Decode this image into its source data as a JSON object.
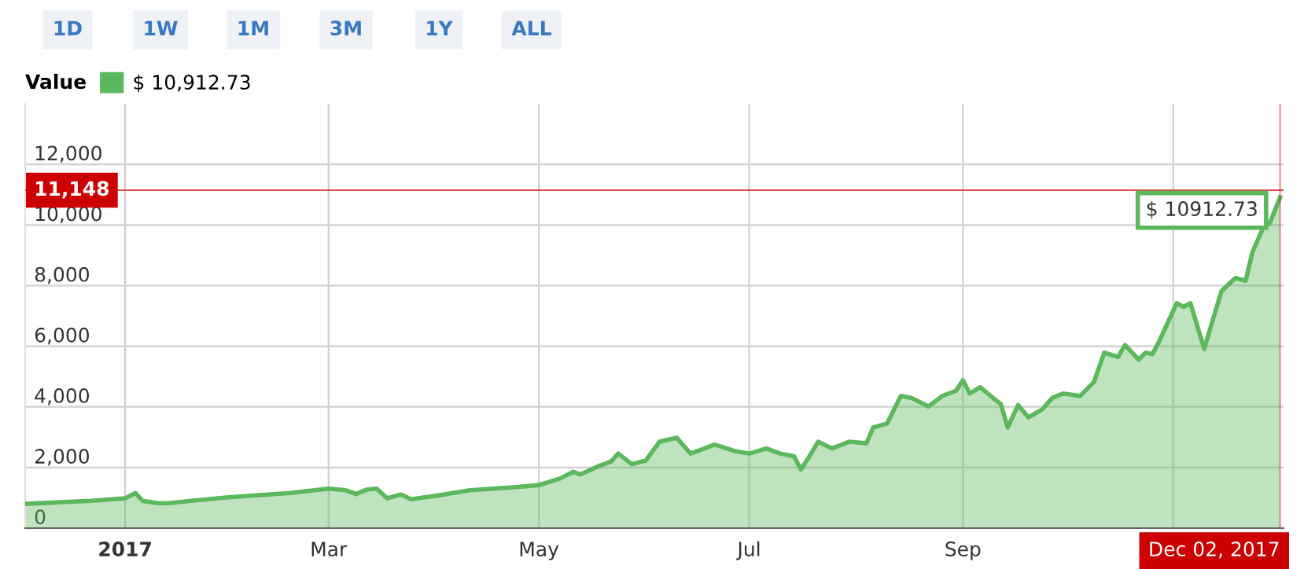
{
  "chart_data": {
    "type": "area",
    "legend_title": "Value",
    "x": [
      "2016-12-03",
      "2016-12-22",
      "2017-01-01",
      "2017-01-04",
      "2017-01-06",
      "2017-01-11",
      "2017-01-14",
      "2017-01-31",
      "2017-02-18",
      "2017-03-01",
      "2017-03-06",
      "2017-03-09",
      "2017-03-12",
      "2017-03-15",
      "2017-03-18",
      "2017-03-22",
      "2017-03-25",
      "2017-04-02",
      "2017-04-11",
      "2017-04-23",
      "2017-05-01",
      "2017-05-07",
      "2017-05-11",
      "2017-05-13",
      "2017-05-18",
      "2017-05-22",
      "2017-05-24",
      "2017-05-28",
      "2017-06-01",
      "2017-06-03",
      "2017-06-05",
      "2017-06-10",
      "2017-06-14",
      "2017-06-18",
      "2017-06-21",
      "2017-06-27",
      "2017-07-01",
      "2017-07-06",
      "2017-07-10",
      "2017-07-14",
      "2017-07-16",
      "2017-07-18",
      "2017-07-21",
      "2017-07-25",
      "2017-07-30",
      "2017-08-04",
      "2017-08-06",
      "2017-08-10",
      "2017-08-14",
      "2017-08-17",
      "2017-08-22",
      "2017-08-26",
      "2017-08-30",
      "2017-09-01",
      "2017-09-03",
      "2017-09-06",
      "2017-09-10",
      "2017-09-12",
      "2017-09-14",
      "2017-09-17",
      "2017-09-20",
      "2017-09-24",
      "2017-09-27",
      "2017-09-30",
      "2017-10-05",
      "2017-10-09",
      "2017-10-12",
      "2017-10-16",
      "2017-10-18",
      "2017-10-22",
      "2017-10-24",
      "2017-10-26",
      "2017-10-28",
      "2017-11-02",
      "2017-11-04",
      "2017-11-06",
      "2017-11-10",
      "2017-11-12",
      "2017-11-15",
      "2017-11-19",
      "2017-11-22",
      "2017-11-24",
      "2017-11-27",
      "2017-11-29",
      "2017-12-02"
    ],
    "series": [
      {
        "name": "$ 10,912.73",
        "color": "#5cb85c",
        "values": [
          800,
          900,
          985,
          1160,
          900,
          815,
          830,
          1020,
          1160,
          1300,
          1250,
          1125,
          1270,
          1300,
          985,
          1110,
          950,
          1080,
          1250,
          1340,
          1420,
          1630,
          1860,
          1770,
          2030,
          2200,
          2460,
          2110,
          2230,
          2540,
          2850,
          2980,
          2460,
          2630,
          2760,
          2540,
          2460,
          2630,
          2460,
          2370,
          1940,
          2280,
          2850,
          2630,
          2850,
          2800,
          3320,
          3450,
          4360,
          4300,
          4010,
          4360,
          4530,
          4880,
          4440,
          4650,
          4270,
          4090,
          3320,
          4060,
          3650,
          3920,
          4300,
          4440,
          4360,
          4820,
          5790,
          5650,
          6040,
          5560,
          5790,
          5740,
          6180,
          7420,
          7300,
          7420,
          5910,
          6690,
          7820,
          8250,
          8160,
          9110,
          9890,
          10060,
          10912.73
        ]
      }
    ],
    "xlim": [
      "2016-12-03",
      "2017-12-03"
    ],
    "xticks": [
      {
        "value": "2017-01-01",
        "label": "2017"
      },
      {
        "value": "2017-03-01",
        "label": "Mar"
      },
      {
        "value": "2017-05-01",
        "label": "May"
      },
      {
        "value": "2017-07-01",
        "label": "Jul"
      },
      {
        "value": "2017-09-01",
        "label": "Sep"
      },
      {
        "value": "2017-11-01",
        "label": null
      }
    ],
    "ylim": [
      0,
      14000
    ],
    "yticks": [
      0,
      {
        "value": 2000,
        "label": "2,000"
      },
      {
        "value": 4000,
        "label": "4,000"
      },
      {
        "value": 6000,
        "label": "6,000"
      },
      {
        "value": 8000,
        "label": "8,000"
      },
      {
        "value": 10000,
        "label": "10,000"
      },
      {
        "value": 12000,
        "label": "12,000"
      }
    ],
    "grid": true,
    "legend": "top left",
    "ref_lines": [
      {
        "axis": "y",
        "value": 11148,
        "label": "11,148",
        "color": "#cc0000"
      },
      {
        "axis": "x",
        "value": "2017-12-02",
        "label": "Dec 02, 2017",
        "color": "#cc0000"
      }
    ],
    "annotations": [
      "1D",
      "1W",
      "1M",
      "3M",
      "1Y",
      "ALL",
      {
        "text": "$ 10912.73",
        "x": "2017-12-02",
        "y": 10912.73
      }
    ]
  }
}
